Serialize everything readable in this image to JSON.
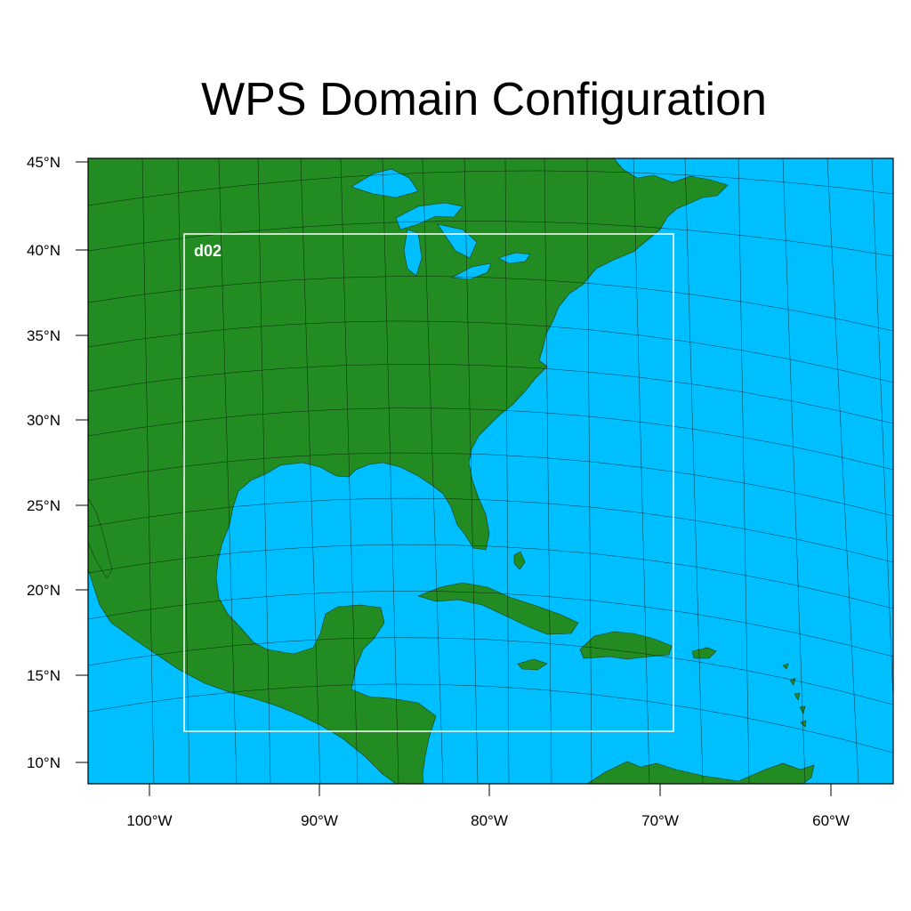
{
  "title": "WPS Domain Configuration",
  "colors": {
    "ocean": "#00bfff",
    "land": "#228b22",
    "grid": "#000000",
    "nest_box": "#ffffff"
  },
  "axes": {
    "lat_ticks": [
      "45°N",
      "40°N",
      "35°N",
      "30°N",
      "25°N",
      "20°N",
      "15°N",
      "10°N"
    ],
    "lon_ticks": [
      "100°W",
      "90°W",
      "80°W",
      "70°W",
      "60°W"
    ]
  },
  "nest": {
    "label": "d02"
  }
}
